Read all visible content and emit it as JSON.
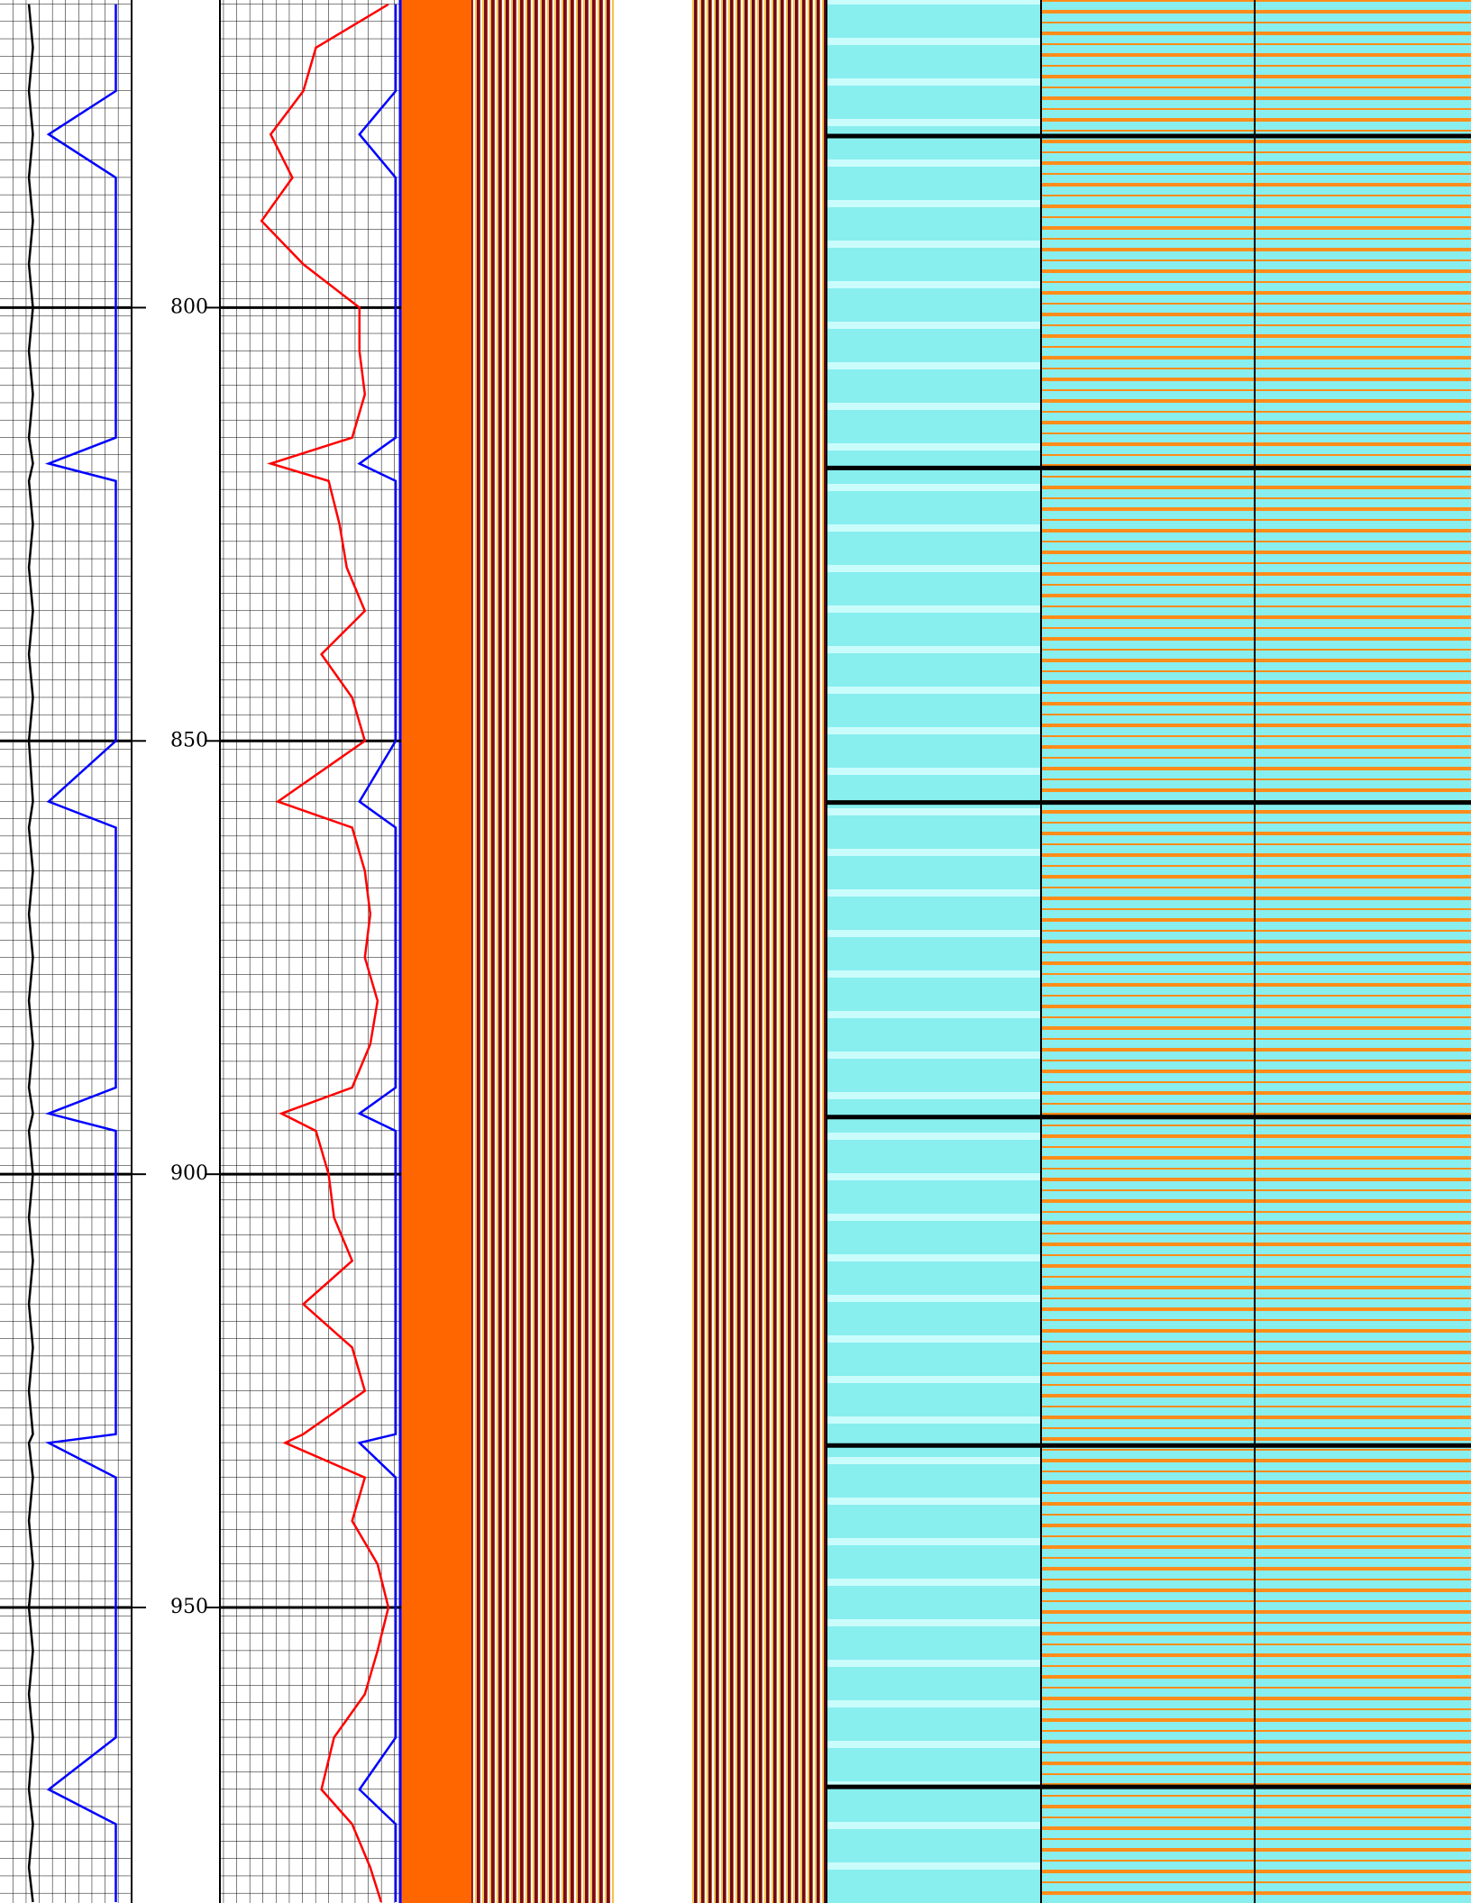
{
  "chart_data": {
    "type": "well-log",
    "ylim": [
      764.5,
      984.1
    ],
    "yticks": [
      800,
      850,
      900,
      950
    ],
    "xlim": [
      0,
      100
    ],
    "grid": true,
    "x": [
      765,
      770,
      775,
      780,
      785,
      790,
      795,
      800,
      805,
      810,
      815,
      818,
      820,
      825,
      830,
      835,
      840,
      845,
      850,
      857,
      860,
      865,
      870,
      875,
      880,
      885,
      890,
      893,
      895,
      900,
      905,
      910,
      915,
      920,
      925,
      930,
      931,
      935,
      940,
      945,
      950,
      955,
      960,
      965,
      971,
      975,
      980,
      984
    ],
    "series": [
      {
        "color": "#000000",
        "values": [
          22,
          25,
          22,
          25,
          22,
          25,
          22,
          25,
          22,
          25,
          22,
          25,
          22,
          25,
          22,
          25,
          22,
          25,
          22,
          25,
          22,
          25,
          22,
          25,
          22,
          25,
          22,
          25,
          22,
          25,
          22,
          25,
          22,
          25,
          22,
          25,
          22,
          25,
          22,
          25,
          22,
          25,
          22,
          25,
          22,
          25,
          22,
          25
        ]
      },
      {
        "color": "#0000ff",
        "values": [
          88,
          88,
          88,
          37,
          88,
          88,
          88,
          88,
          88,
          88,
          88,
          37,
          88,
          88,
          88,
          88,
          88,
          88,
          88,
          37,
          88,
          88,
          88,
          88,
          88,
          88,
          88,
          37,
          88,
          88,
          88,
          88,
          88,
          88,
          88,
          88,
          37,
          88,
          88,
          88,
          88,
          88,
          88,
          88,
          37,
          88,
          88,
          88
        ]
      },
      {
        "color": "#ff0000",
        "values": [
          93,
          53,
          46,
          28,
          40,
          23,
          46,
          77,
          77,
          80,
          73,
          28,
          60,
          66,
          70,
          80,
          56,
          73,
          80,
          32,
          73,
          80,
          83,
          80,
          87,
          83,
          73,
          34,
          53,
          60,
          63,
          73,
          46,
          73,
          80,
          46,
          36,
          80,
          73,
          87,
          93,
          87,
          80,
          63,
          56,
          73,
          83,
          89
        ]
      },
      {
        "color": "#0000ff",
        "values": [
          97,
          97,
          97,
          77,
          97,
          97,
          97,
          97,
          97,
          97,
          97,
          77,
          97,
          97,
          97,
          97,
          97,
          97,
          97,
          77,
          97,
          97,
          97,
          97,
          97,
          97,
          97,
          77,
          97,
          97,
          97,
          97,
          97,
          97,
          97,
          97,
          77,
          97,
          97,
          97,
          97,
          97,
          97,
          97,
          77,
          97,
          97,
          97
        ]
      }
    ],
    "beds": [
      780.2,
      818.5,
      857.1,
      893.4,
      931.3,
      970.7
    ]
  }
}
